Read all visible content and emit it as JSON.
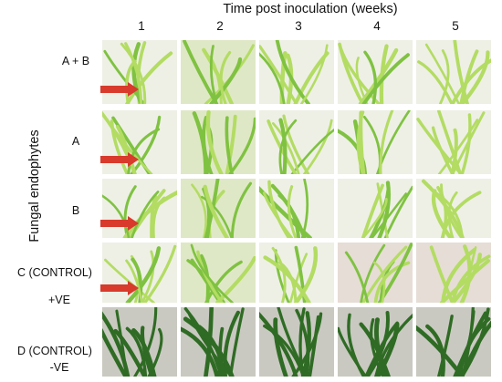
{
  "figure": {
    "title": "Time post inoculation (weeks)",
    "column_labels": [
      "1",
      "2",
      "3",
      "4",
      "5"
    ],
    "y_axis_label": "Fungal endophytes",
    "rows": [
      {
        "label": "A + B",
        "sublabel": "",
        "arrow": true
      },
      {
        "label": "A",
        "sublabel": "",
        "arrow": true
      },
      {
        "label": "B",
        "sublabel": "",
        "arrow": true
      },
      {
        "label": "C (CONTROL)",
        "sublabel": "+VE",
        "arrow": true
      },
      {
        "label": "D (CONTROL)",
        "sublabel": "-VE",
        "arrow": false
      }
    ],
    "colors": {
      "young_leaf": "#7fc241",
      "young_leaf_light": "#b3dc63",
      "mature_leaf": "#2f6b24",
      "arrow": "#d83a2c",
      "background_light": "#eef0e6",
      "background_mature": "#c9c9c1"
    }
  }
}
